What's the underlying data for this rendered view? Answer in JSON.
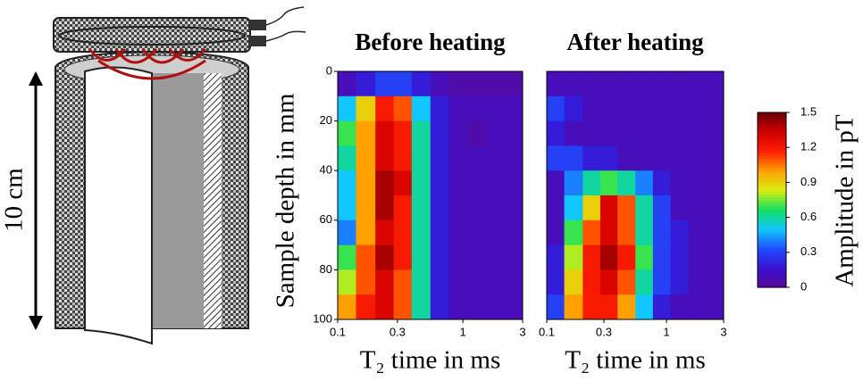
{
  "schematic": {
    "label": "10 cm"
  },
  "colorbar": {
    "label": "Amplitude in pT",
    "lim": [
      0,
      1.5
    ],
    "ticks": [
      0,
      0.3,
      0.6,
      0.9,
      1.2,
      1.5
    ],
    "colormap": [
      "#5a0a9a",
      "#3a10d0",
      "#1f4dff",
      "#10c8ff",
      "#10e060",
      "#d8ef10",
      "#ffa000",
      "#ff2000",
      "#d00000",
      "#6a0000"
    ]
  },
  "chart_data": [
    {
      "type": "heatmap",
      "title": "Before heating",
      "xlabel": "T₂ time in ms",
      "ylabel": "Sample depth in mm",
      "xscale": "log",
      "xlim": [
        0.1,
        3
      ],
      "xticks": [
        0.1,
        0.3,
        1,
        3
      ],
      "ylim": [
        0,
        100
      ],
      "yticks": [
        0,
        20,
        40,
        60,
        80,
        100
      ],
      "xbins": [
        0.1,
        0.14,
        0.2,
        0.28,
        0.39,
        0.55,
        0.77,
        1.08,
        1.52,
        2.13,
        3
      ],
      "ybins": [
        0,
        10,
        20,
        30,
        40,
        50,
        60,
        70,
        80,
        90,
        100
      ],
      "values": [
        [
          0.1,
          0.2,
          0.3,
          0.3,
          0.2,
          0.1,
          0.05,
          0.05,
          0.05,
          0.05
        ],
        [
          0.5,
          0.9,
          1.2,
          1.1,
          0.5,
          0.2,
          0.1,
          0.1,
          0.1,
          0.1
        ],
        [
          0.7,
          1.0,
          1.3,
          1.2,
          0.6,
          0.2,
          0.1,
          0.05,
          0.1,
          0.1
        ],
        [
          0.6,
          1.0,
          1.3,
          1.2,
          0.6,
          0.2,
          0.1,
          0.1,
          0.1,
          0.1
        ],
        [
          0.5,
          1.0,
          1.4,
          1.3,
          0.6,
          0.2,
          0.1,
          0.1,
          0.1,
          0.1
        ],
        [
          0.5,
          1.0,
          1.4,
          1.2,
          0.6,
          0.2,
          0.1,
          0.1,
          0.1,
          0.1
        ],
        [
          0.4,
          1.0,
          1.3,
          1.2,
          0.6,
          0.2,
          0.1,
          0.1,
          0.1,
          0.1
        ],
        [
          0.7,
          1.1,
          1.4,
          1.2,
          0.6,
          0.2,
          0.1,
          0.1,
          0.1,
          0.1
        ],
        [
          0.8,
          1.1,
          1.3,
          1.1,
          0.6,
          0.2,
          0.1,
          0.1,
          0.1,
          0.1
        ],
        [
          1.0,
          1.2,
          1.3,
          1.1,
          0.6,
          0.2,
          0.1,
          0.1,
          0.1,
          0.1
        ]
      ]
    },
    {
      "type": "heatmap",
      "title": "After heating",
      "xlabel": "T₂ time in ms",
      "xscale": "log",
      "xlim": [
        0.1,
        3
      ],
      "xticks": [
        0.1,
        0.3,
        1,
        3
      ],
      "ylim": [
        0,
        100
      ],
      "xbins": [
        0.1,
        0.14,
        0.2,
        0.28,
        0.39,
        0.55,
        0.77,
        1.08,
        1.52,
        2.13,
        3
      ],
      "ybins": [
        0,
        10,
        20,
        30,
        40,
        50,
        60,
        70,
        80,
        90,
        100
      ],
      "values": [
        [
          0.1,
          0.1,
          0.1,
          0.1,
          0.1,
          0.1,
          0.1,
          0.1,
          0.1,
          0.1
        ],
        [
          0.3,
          0.2,
          0.1,
          0.1,
          0.1,
          0.1,
          0.1,
          0.1,
          0.1,
          0.1
        ],
        [
          0.2,
          0.1,
          0.1,
          0.1,
          0.1,
          0.1,
          0.1,
          0.1,
          0.1,
          0.1
        ],
        [
          0.3,
          0.3,
          0.2,
          0.2,
          0.1,
          0.1,
          0.1,
          0.1,
          0.1,
          0.1
        ],
        [
          0.1,
          0.4,
          0.6,
          0.7,
          0.6,
          0.4,
          0.2,
          0.1,
          0.1,
          0.1
        ],
        [
          0.1,
          0.5,
          0.9,
          1.3,
          1.1,
          0.6,
          0.3,
          0.1,
          0.1,
          0.1
        ],
        [
          0.1,
          0.7,
          1.1,
          1.3,
          1.1,
          0.6,
          0.3,
          0.2,
          0.1,
          0.1
        ],
        [
          0.2,
          0.8,
          1.2,
          1.4,
          1.2,
          0.7,
          0.3,
          0.2,
          0.1,
          0.1
        ],
        [
          0.2,
          0.9,
          1.2,
          1.3,
          1.1,
          0.6,
          0.3,
          0.2,
          0.1,
          0.1
        ],
        [
          0.3,
          1.0,
          1.2,
          1.2,
          1.0,
          0.5,
          0.2,
          0.1,
          0.1,
          0.1
        ]
      ]
    }
  ]
}
